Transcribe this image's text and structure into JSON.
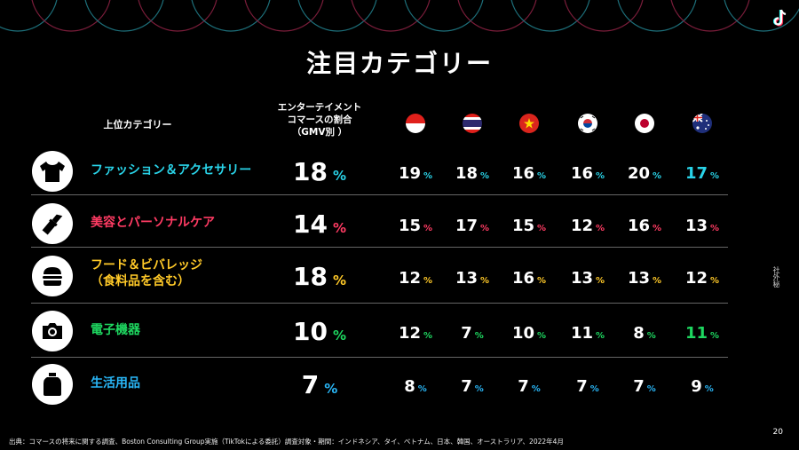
{
  "title": "注目カテゴリー",
  "header": {
    "category": "上位カテゴリー",
    "entertainment_line1": "エンターテイメント",
    "entertainment_line2": "コマースの割合",
    "entertainment_line3": "（GMV別 ）"
  },
  "flags": [
    "indonesia-flag",
    "thailand-flag",
    "vietnam-flag",
    "korea-flag",
    "japan-flag",
    "australia-flag"
  ],
  "rows": [
    {
      "label_line1": "ファッション＆アクセサリー",
      "label_line2": "",
      "color": "#29d3e8",
      "icon": "tshirt-icon",
      "share": "18",
      "pct": "%",
      "values": [
        "19",
        "18",
        "16",
        "16",
        "20",
        "17"
      ]
    },
    {
      "label_line1": "美容とパーソナルケア",
      "label_line2": "",
      "color": "#ff3b63",
      "icon": "lipstick-icon",
      "share": "14",
      "pct": "%",
      "values": [
        "15",
        "17",
        "15",
        "12",
        "16",
        "13"
      ]
    },
    {
      "label_line1": "フード＆ビバレッジ",
      "label_line2": "（食料品を含む）",
      "color": "#ffc928",
      "icon": "burger-icon",
      "share": "18",
      "pct": "%",
      "values": [
        "12",
        "13",
        "16",
        "13",
        "13",
        "12"
      ]
    },
    {
      "label_line1": "電子機器",
      "label_line2": "",
      "color": "#1ed760",
      "icon": "camera-icon",
      "share": "10",
      "pct": "%",
      "values": [
        "12",
        "7",
        "10",
        "11",
        "8",
        "11"
      ]
    },
    {
      "label_line1": "生活用品",
      "label_line2": "",
      "color": "#29b6f6",
      "icon": "bottle-icon",
      "share": "7",
      "pct": "%",
      "values": [
        "8",
        "7",
        "7",
        "7",
        "7",
        "9"
      ]
    }
  ],
  "side_note": "社外秘",
  "page_number": "20",
  "source": "出典：コマースの将来に関する調査、Boston Consulting Group実施（TikTokによる委託）調査対象・期間：インドネシア、タイ、ベトナム、日本、韓国、オーストラリア、2022年4月"
}
